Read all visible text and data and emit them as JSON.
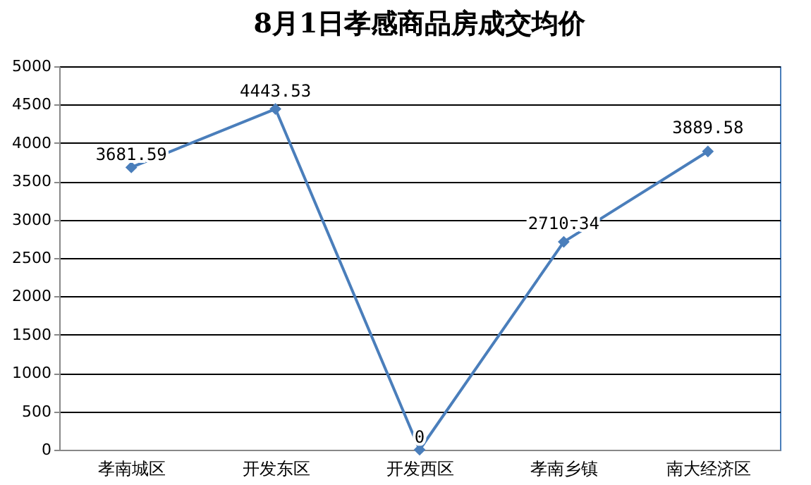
{
  "chart_data": {
    "type": "line",
    "title": "8月1日孝感商品房成交均价",
    "categories": [
      "孝南城区",
      "开发东区",
      "开发西区",
      "孝南乡镇",
      "南大经济区"
    ],
    "values": [
      3681.59,
      4443.53,
      0,
      2710.34,
      3889.58
    ],
    "color": "#4a7ebb",
    "ylim": [
      0,
      5000
    ],
    "yticks": [
      0,
      500,
      1000,
      1500,
      2000,
      2500,
      3000,
      3500,
      4000,
      4500,
      5000
    ],
    "grid": "y",
    "marker": "diamond",
    "line_style": "solid",
    "data_labels": true
  }
}
